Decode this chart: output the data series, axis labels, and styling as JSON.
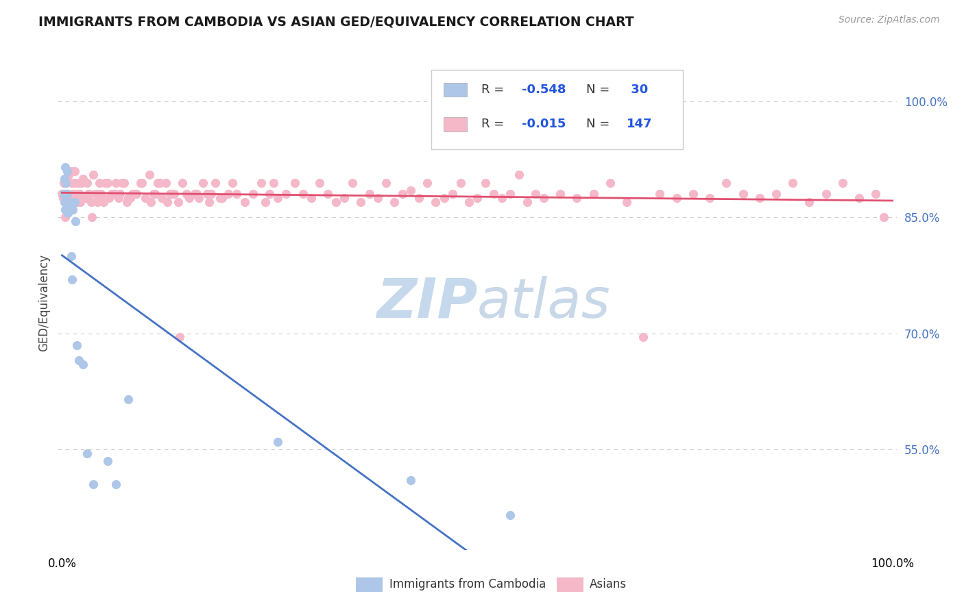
{
  "title": "IMMIGRANTS FROM CAMBODIA VS ASIAN GED/EQUIVALENCY CORRELATION CHART",
  "source": "Source: ZipAtlas.com",
  "ylabel": "GED/Equivalency",
  "legend_blue_label": "Immigrants from Cambodia",
  "legend_pink_label": "Asians",
  "blue_color": "#aec6e8",
  "pink_color": "#f4b8c8",
  "blue_line_color": "#4472c4",
  "pink_line_color": "#e05070",
  "r_value_color": "#2255dd",
  "background_color": "#ffffff",
  "watermark_color": "#c8d8ee",
  "blue_x": [
    0.002,
    0.003,
    0.004,
    0.004,
    0.005,
    0.005,
    0.006,
    0.006,
    0.007,
    0.008,
    0.009,
    0.01,
    0.011,
    0.012,
    0.013,
    0.015,
    0.016,
    0.018,
    0.02,
    0.025,
    0.03,
    0.038,
    0.055,
    0.065,
    0.08,
    0.26,
    0.42,
    0.54,
    0.003,
    0.005
  ],
  "blue_y": [
    0.88,
    0.87,
    0.86,
    0.915,
    0.895,
    0.86,
    0.91,
    0.88,
    0.856,
    0.87,
    0.865,
    0.865,
    0.8,
    0.77,
    0.86,
    0.87,
    0.845,
    0.685,
    0.665,
    0.66,
    0.545,
    0.505,
    0.535,
    0.505,
    0.615,
    0.56,
    0.51,
    0.465,
    0.9,
    0.88
  ],
  "pink_x": [
    0.005,
    0.008,
    0.01,
    0.012,
    0.015,
    0.018,
    0.02,
    0.022,
    0.025,
    0.028,
    0.03,
    0.032,
    0.035,
    0.038,
    0.04,
    0.042,
    0.045,
    0.048,
    0.05,
    0.055,
    0.06,
    0.062,
    0.065,
    0.068,
    0.07,
    0.075,
    0.08,
    0.085,
    0.09,
    0.095,
    0.1,
    0.105,
    0.11,
    0.115,
    0.12,
    0.125,
    0.13,
    0.135,
    0.14,
    0.145,
    0.15,
    0.16,
    0.165,
    0.17,
    0.175,
    0.18,
    0.185,
    0.19,
    0.2,
    0.205,
    0.21,
    0.22,
    0.23,
    0.24,
    0.245,
    0.25,
    0.255,
    0.26,
    0.27,
    0.28,
    0.29,
    0.3,
    0.31,
    0.32,
    0.33,
    0.34,
    0.35,
    0.36,
    0.37,
    0.38,
    0.39,
    0.4,
    0.41,
    0.42,
    0.43,
    0.44,
    0.45,
    0.46,
    0.47,
    0.48,
    0.49,
    0.5,
    0.51,
    0.52,
    0.53,
    0.54,
    0.55,
    0.56,
    0.57,
    0.58,
    0.6,
    0.62,
    0.64,
    0.66,
    0.68,
    0.7,
    0.72,
    0.74,
    0.76,
    0.78,
    0.8,
    0.82,
    0.84,
    0.86,
    0.88,
    0.9,
    0.92,
    0.94,
    0.96,
    0.98,
    0.99,
    0.0,
    0.001,
    0.002,
    0.003,
    0.004,
    0.006,
    0.007,
    0.009,
    0.011,
    0.013,
    0.016,
    0.019,
    0.021,
    0.024,
    0.027,
    0.033,
    0.036,
    0.043,
    0.047,
    0.052,
    0.057,
    0.063,
    0.072,
    0.078,
    0.082,
    0.088,
    0.096,
    0.107,
    0.112,
    0.118,
    0.127,
    0.133,
    0.142,
    0.153,
    0.162,
    0.177,
    0.193
  ],
  "pink_y": [
    0.895,
    0.905,
    0.87,
    0.895,
    0.91,
    0.88,
    0.895,
    0.87,
    0.9,
    0.875,
    0.895,
    0.88,
    0.87,
    0.905,
    0.88,
    0.88,
    0.895,
    0.875,
    0.87,
    0.895,
    0.88,
    0.88,
    0.895,
    0.875,
    0.88,
    0.895,
    0.875,
    0.88,
    0.88,
    0.895,
    0.875,
    0.905,
    0.88,
    0.895,
    0.875,
    0.895,
    0.88,
    0.88,
    0.87,
    0.895,
    0.88,
    0.88,
    0.875,
    0.895,
    0.88,
    0.88,
    0.895,
    0.875,
    0.88,
    0.895,
    0.88,
    0.87,
    0.88,
    0.895,
    0.87,
    0.88,
    0.895,
    0.875,
    0.88,
    0.895,
    0.88,
    0.875,
    0.895,
    0.88,
    0.87,
    0.875,
    0.895,
    0.87,
    0.88,
    0.875,
    0.895,
    0.87,
    0.88,
    0.885,
    0.875,
    0.895,
    0.87,
    0.875,
    0.88,
    0.895,
    0.87,
    0.875,
    0.895,
    0.88,
    0.875,
    0.88,
    0.905,
    0.87,
    0.88,
    0.875,
    0.88,
    0.875,
    0.88,
    0.895,
    0.87,
    0.695,
    0.88,
    0.875,
    0.88,
    0.875,
    0.895,
    0.88,
    0.875,
    0.88,
    0.895,
    0.87,
    0.88,
    0.895,
    0.875,
    0.88,
    0.85,
    0.88,
    0.875,
    0.895,
    0.88,
    0.85,
    0.87,
    0.88,
    0.875,
    0.91,
    0.88,
    0.895,
    0.87,
    0.88,
    0.895,
    0.875,
    0.88,
    0.85,
    0.87,
    0.88,
    0.895,
    0.875,
    0.88,
    0.895,
    0.87,
    0.875,
    0.88,
    0.895,
    0.87,
    0.88,
    0.895,
    0.87,
    0.88,
    0.695,
    0.875,
    0.88,
    0.87,
    0.875
  ]
}
